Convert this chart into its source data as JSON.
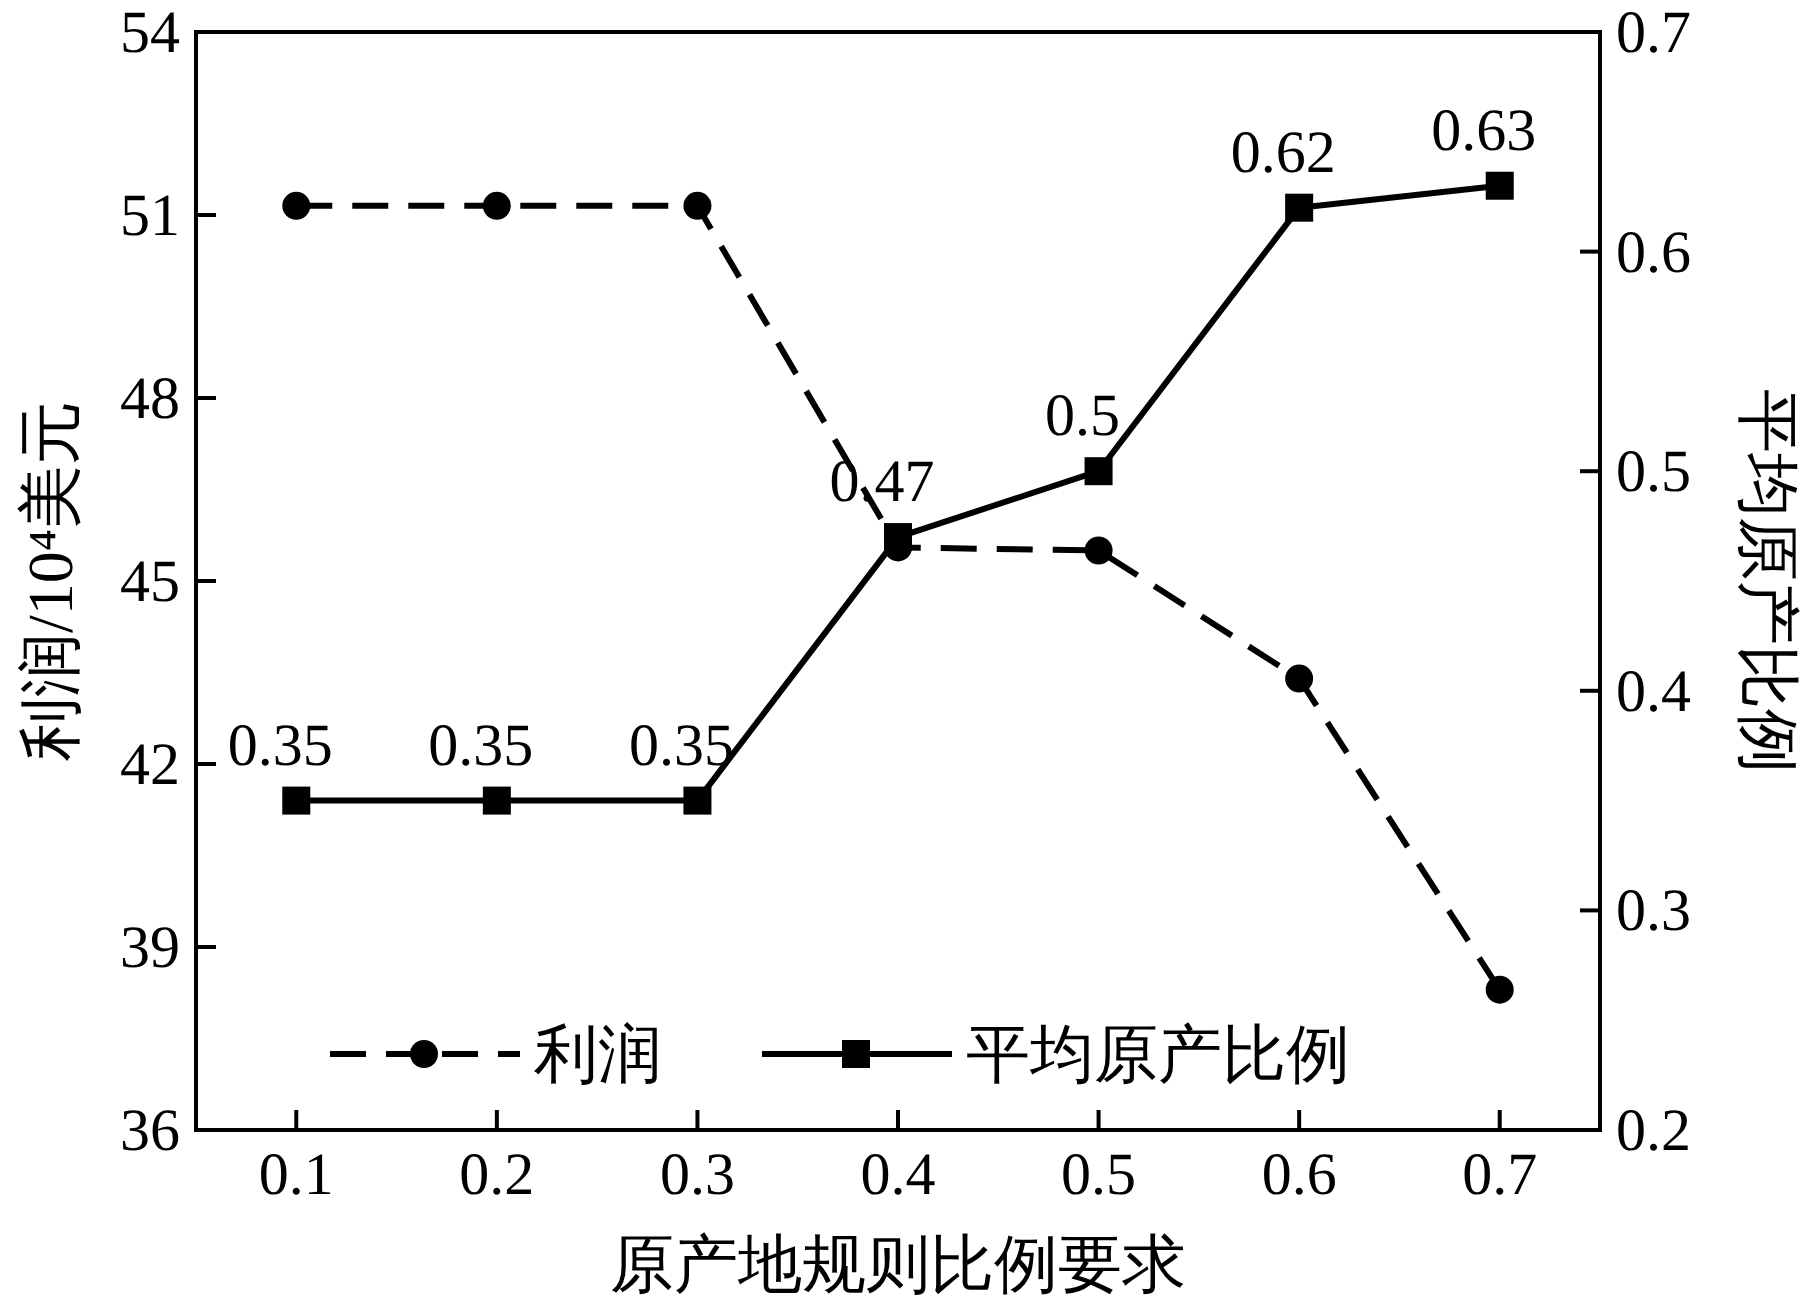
{
  "chart_data": {
    "type": "line",
    "xlabel": "原产地规则比例要求",
    "ylabel": "利润/10⁴美元",
    "y2label": "平均原产比例",
    "x": [
      0.1,
      0.2,
      0.3,
      0.4,
      0.5,
      0.6,
      0.7
    ],
    "xlim": [
      0.05,
      0.75
    ],
    "xticks": [
      0.1,
      0.2,
      0.3,
      0.4,
      0.5,
      0.6,
      0.7
    ],
    "ylim": [
      36,
      54
    ],
    "yticks": [
      36,
      39,
      42,
      45,
      48,
      51,
      54
    ],
    "y2lim": [
      0.2,
      0.7
    ],
    "y2ticks": [
      0.2,
      0.3,
      0.4,
      0.5,
      0.6,
      0.7
    ],
    "legend": "bottom",
    "grid": false,
    "series": [
      {
        "name": "利润",
        "color": "#000000",
        "marker": "circle",
        "line_style": "dashed",
        "values": [
          51.15,
          51.15,
          51.15,
          45.55,
          45.5,
          43.4,
          38.3
        ]
      },
      {
        "name": "平均原产比例",
        "color": "#000000",
        "marker": "square",
        "line_style": "solid",
        "axis": "y2",
        "values": [
          0.35,
          0.35,
          0.35,
          0.47,
          0.5,
          0.62,
          0.63
        ],
        "value_labels": [
          "0.35",
          "0.35",
          "0.35",
          "0.47",
          "0.5",
          "0.62",
          "0.63"
        ]
      }
    ]
  }
}
